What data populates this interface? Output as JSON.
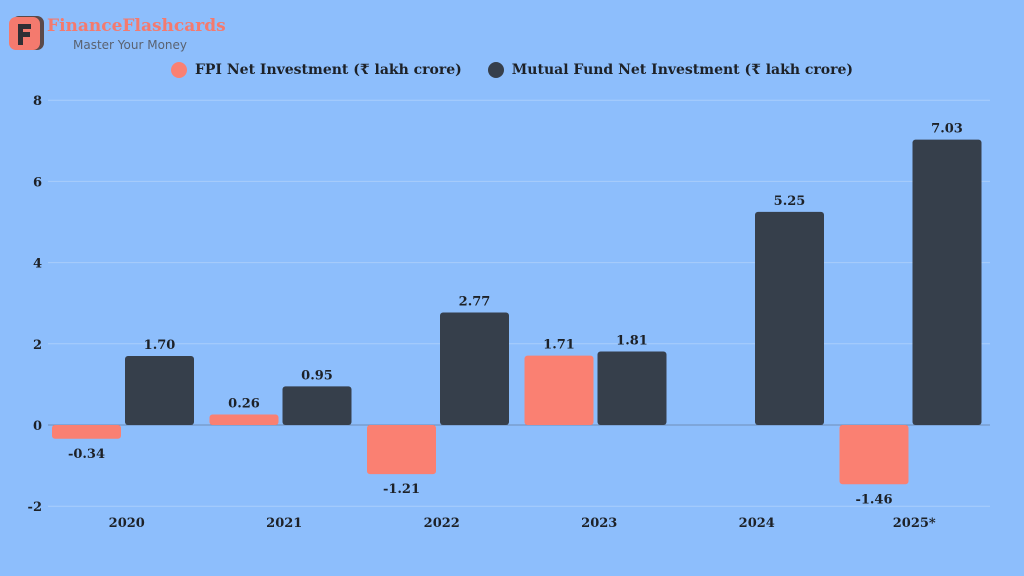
{
  "brand": {
    "name": "FinanceFlashcards",
    "tagline": "Master Your Money",
    "logo_letter": "F"
  },
  "colors": {
    "background": "#8dbefc",
    "fpi": "#fa8072",
    "mf": "#363f4b",
    "grid": "#a9cdfb"
  },
  "chart_data": {
    "type": "bar",
    "categories": [
      "2020",
      "2021",
      "2022",
      "2023",
      "2024",
      "2025*"
    ],
    "series": [
      {
        "name": "FPI Net Investment (₹ lakh crore)",
        "values": [
          -0.34,
          0.26,
          -1.21,
          1.71,
          null,
          -1.46
        ],
        "labels": [
          "-0.34",
          "0.26",
          "-1.21",
          "1.71",
          null,
          "-1.46"
        ]
      },
      {
        "name": "Mutual Fund Net Investment (₹ lakh crore)",
        "values": [
          1.7,
          0.95,
          2.77,
          1.81,
          5.25,
          7.03
        ],
        "labels": [
          "1.70",
          "0.95",
          "2.77",
          "1.81",
          "5.25",
          "7.03"
        ]
      }
    ],
    "ylim": [
      -2,
      8
    ],
    "yticks": [
      "-2",
      "0",
      "2",
      "4",
      "6",
      "8"
    ],
    "grid": true,
    "legend": "top"
  }
}
